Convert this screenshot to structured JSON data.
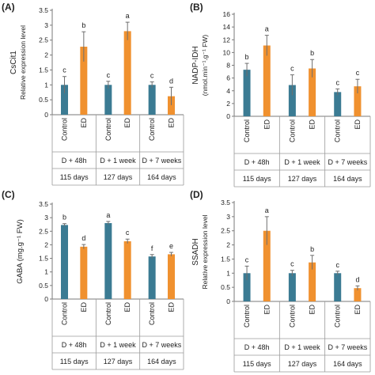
{
  "colors": {
    "control": "#3b7b93",
    "ed": "#f0912f"
  },
  "chart_data": [
    {
      "type": "bar",
      "panel_label": "(A)",
      "ylabel": "CsCit1",
      "ylabel2": "Relative expression level",
      "ylim": [
        0,
        3.5
      ],
      "yticks": [
        "0",
        "0.5",
        "1",
        "1.5",
        "2",
        "2.5",
        "3",
        "3.5"
      ],
      "categories": [
        "Control",
        "ED",
        "Control",
        "ED",
        "Control",
        "ED"
      ],
      "groups": [
        "D + 48h",
        "D + 1 week",
        "D + 7 weeks"
      ],
      "days": [
        "115 days",
        "127 days",
        "164 days"
      ],
      "values": [
        1.0,
        2.28,
        1.0,
        2.8,
        1.0,
        0.62
      ],
      "errors": [
        0.28,
        0.5,
        0.12,
        0.3,
        0.1,
        0.3
      ],
      "letters": [
        "c",
        "b",
        "c",
        "a",
        "c",
        "d"
      ]
    },
    {
      "type": "bar",
      "panel_label": "(B)",
      "ylabel": "NADP-IDH",
      "ylabel2": "(nmol.min⁻¹.g⁻¹ FW)",
      "ylim": [
        0,
        16
      ],
      "yticks": [
        "0",
        "2",
        "4",
        "6",
        "8",
        "10",
        "12",
        "14",
        "16"
      ],
      "categories": [
        "Control",
        "ED",
        "Control",
        "ED",
        "Control",
        "ED"
      ],
      "groups": [
        "D + 48h",
        "D + 1 week",
        "D + 7 weeks"
      ],
      "days": [
        "115 days",
        "127 days",
        "164 days"
      ],
      "values": [
        7.3,
        11.1,
        4.9,
        7.5,
        3.8,
        4.7
      ],
      "errors": [
        1.0,
        1.6,
        1.6,
        1.4,
        0.5,
        1.1
      ],
      "letters": [
        "b",
        "a",
        "c",
        "b",
        "c",
        "c"
      ]
    },
    {
      "type": "bar",
      "panel_label": "(C)",
      "ylabel": "GABA (mg.g⁻¹ FW)",
      "ylabel2": "",
      "ylim": [
        0,
        3.5
      ],
      "yticks": [
        "0",
        "0.5",
        "1",
        "1.5",
        "2",
        "2.5",
        "3",
        "3.5"
      ],
      "categories": [
        "Control",
        "ED",
        "Control",
        "ED",
        "Control",
        "ED"
      ],
      "groups": [
        "D + 48h",
        "D + 1 week",
        "D + 7 weeks"
      ],
      "days": [
        "115 days",
        "127 days",
        "164 days"
      ],
      "values": [
        2.73,
        1.93,
        2.8,
        2.13,
        1.57,
        1.65
      ],
      "errors": [
        0.05,
        0.08,
        0.06,
        0.08,
        0.07,
        0.07
      ],
      "letters": [
        "b",
        "d",
        "a",
        "c",
        "f",
        "e"
      ]
    },
    {
      "type": "bar",
      "panel_label": "(D)",
      "ylabel": "SSADH",
      "ylabel2": "Relative expression level",
      "ylim": [
        0,
        3.5
      ],
      "yticks": [
        "0",
        "0.5",
        "1",
        "1.5",
        "2",
        "2.5",
        "3",
        "3.5"
      ],
      "categories": [
        "Control",
        "ED",
        "Control",
        "ED",
        "Control",
        "ED"
      ],
      "groups": [
        "D + 48h",
        "D + 1 week",
        "D + 7 weeks"
      ],
      "days": [
        "115 days",
        "127 days",
        "164 days"
      ],
      "values": [
        1.0,
        2.5,
        1.0,
        1.38,
        1.0,
        0.47
      ],
      "errors": [
        0.25,
        0.5,
        0.1,
        0.25,
        0.07,
        0.08
      ],
      "letters": [
        "c",
        "a",
        "c",
        "b",
        "c",
        "d"
      ]
    }
  ]
}
